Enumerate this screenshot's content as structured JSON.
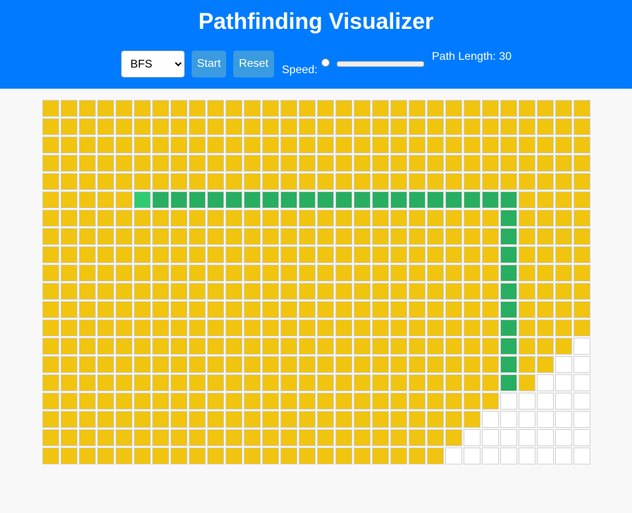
{
  "app": {
    "title": "Pathfinding Visualizer"
  },
  "controls": {
    "algorithm_selected": "BFS",
    "algorithm_options": [
      "BFS"
    ],
    "start_label": "Start",
    "reset_label": "Reset",
    "speed_label": "Speed:",
    "speed_value": 0,
    "path_length_label": "Path Length: 30"
  },
  "colors": {
    "header": "#007bff",
    "button": "#3a9be0",
    "visited": "#f1c40f",
    "path": "#27ae60",
    "start": "#2ecc71",
    "unvisited": "#ffffff",
    "cell_border": "#d0d0d0"
  },
  "grid": {
    "rows": 20,
    "cols": 30,
    "legend": {
      "V": "visited",
      "P": "path",
      "S": "start",
      "U": "unvisited"
    },
    "cells": [
      "VVVVVVVVVVVVVVVVVVVVVVVVVVVVVV",
      "VVVVVVVVVVVVVVVVVVVVVVVVVVVVVV",
      "VVVVVVVVVVVVVVVVVVVVVVVVVVVVVV",
      "VVVVVVVVVVVVVVVVVVVVVVVVVVVVVV",
      "VVVVVVVVVVVVVVVVVVVVVVVVVVVVVV",
      "VVVVVSPPPPPPPPPPPPPPPPPPPPVVVV",
      "VVVVVVVVVVVVVVVVVVVVVVVVVPVVVV",
      "VVVVVVVVVVVVVVVVVVVVVVVVVPVVVV",
      "VVVVVVVVVVVVVVVVVVVVVVVVVPVVVV",
      "VVVVVVVVVVVVVVVVVVVVVVVVVPVVVV",
      "VVVVVVVVVVVVVVVVVVVVVVVVVPVVVV",
      "VVVVVVVVVVVVVVVVVVVVVVVVVPVVVV",
      "VVVVVVVVVVVVVVVVVVVVVVVVVPVVVV",
      "VVVVVVVVVVVVVVVVVVVVVVVVVPVVVU",
      "VVVVVVVVVVVVVVVVVVVVVVVVVPVVUU",
      "VVVVVVVVVVVVVVVVVVVVVVVVVPVUUU",
      "VVVVVVVVVVVVVVVVVVVVVVVVVUUUUU",
      "VVVVVVVVVVVVVVVVVVVVVVVVUUUUUU",
      "VVVVVVVVVVVVVVVVVVVVVVVUUUUUUU",
      "VVVVVVVVVVVVVVVVVVVVVVUUUUUUUU"
    ]
  }
}
